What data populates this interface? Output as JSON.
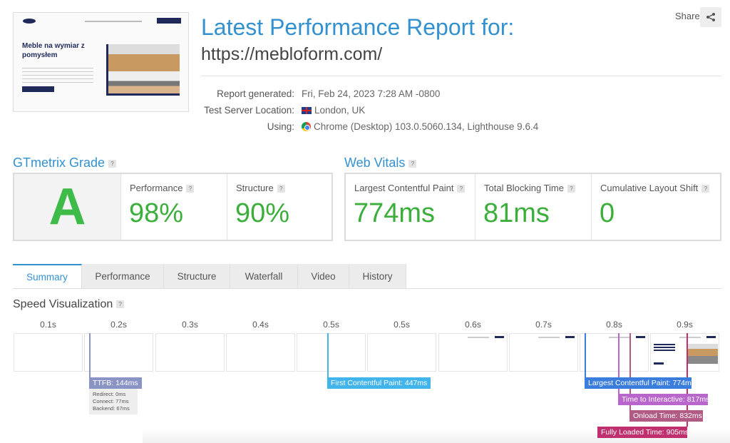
{
  "header": {
    "title": "Latest Performance Report for:",
    "url": "https://mebloform.com/",
    "share_label": "Share"
  },
  "thumbnail": {
    "headline": "Meble na wymiar z pomysłem"
  },
  "info": [
    {
      "label": "Report generated:",
      "value": "Fri, Feb 24, 2023 7:28 AM -0800"
    },
    {
      "label": "Test Server Location:",
      "value": "London, UK",
      "icon": "uk-flag-icon"
    },
    {
      "label": "Using:",
      "value": "Chrome (Desktop) 103.0.5060.134, Lighthouse 9.6.4",
      "icon": "chrome-icon"
    }
  ],
  "grade": {
    "heading": "GTmetrix Grade",
    "letter": "A",
    "performance_label": "Performance",
    "performance": "98%",
    "structure_label": "Structure",
    "structure": "90%"
  },
  "vitals": {
    "heading": "Web Vitals",
    "lcp_label": "Largest Contentful Paint",
    "lcp": "774ms",
    "tbt_label": "Total Blocking Time",
    "tbt": "81ms",
    "cls_label": "Cumulative Layout Shift",
    "cls": "0"
  },
  "tabs": [
    "Summary",
    "Performance",
    "Structure",
    "Waterfall",
    "Video",
    "History"
  ],
  "active_tab": "Summary",
  "speed": {
    "heading": "Speed Visualization",
    "frame_times": [
      "0.1s",
      "0.2s",
      "0.3s",
      "0.4s",
      "0.5s",
      "0.5s",
      "0.6s",
      "0.7s",
      "0.8s",
      "0.9s"
    ],
    "markers": {
      "ttfb": "TTFB: 144ms",
      "redirect": "Redirect: 0ms",
      "connect": "Connect: 77ms",
      "backend": "Backend: 67ms",
      "fcp": "First Contentful Paint: 447ms",
      "lcp": "Largest Contentful Paint: 774ms",
      "tti": "Time to Interactive: 817ms",
      "onload": "Onload Time: 832ms",
      "fully": "Fully Loaded Time: 905ms"
    }
  },
  "colors": {
    "accent": "#3391d0",
    "good": "#3cae3c",
    "ttfb": "#8a94c4",
    "fcp": "#42b4ec",
    "lcp": "#3b7ddd",
    "tti": "#b866cc",
    "onload": "#b05a84",
    "fully": "#c0306e"
  }
}
